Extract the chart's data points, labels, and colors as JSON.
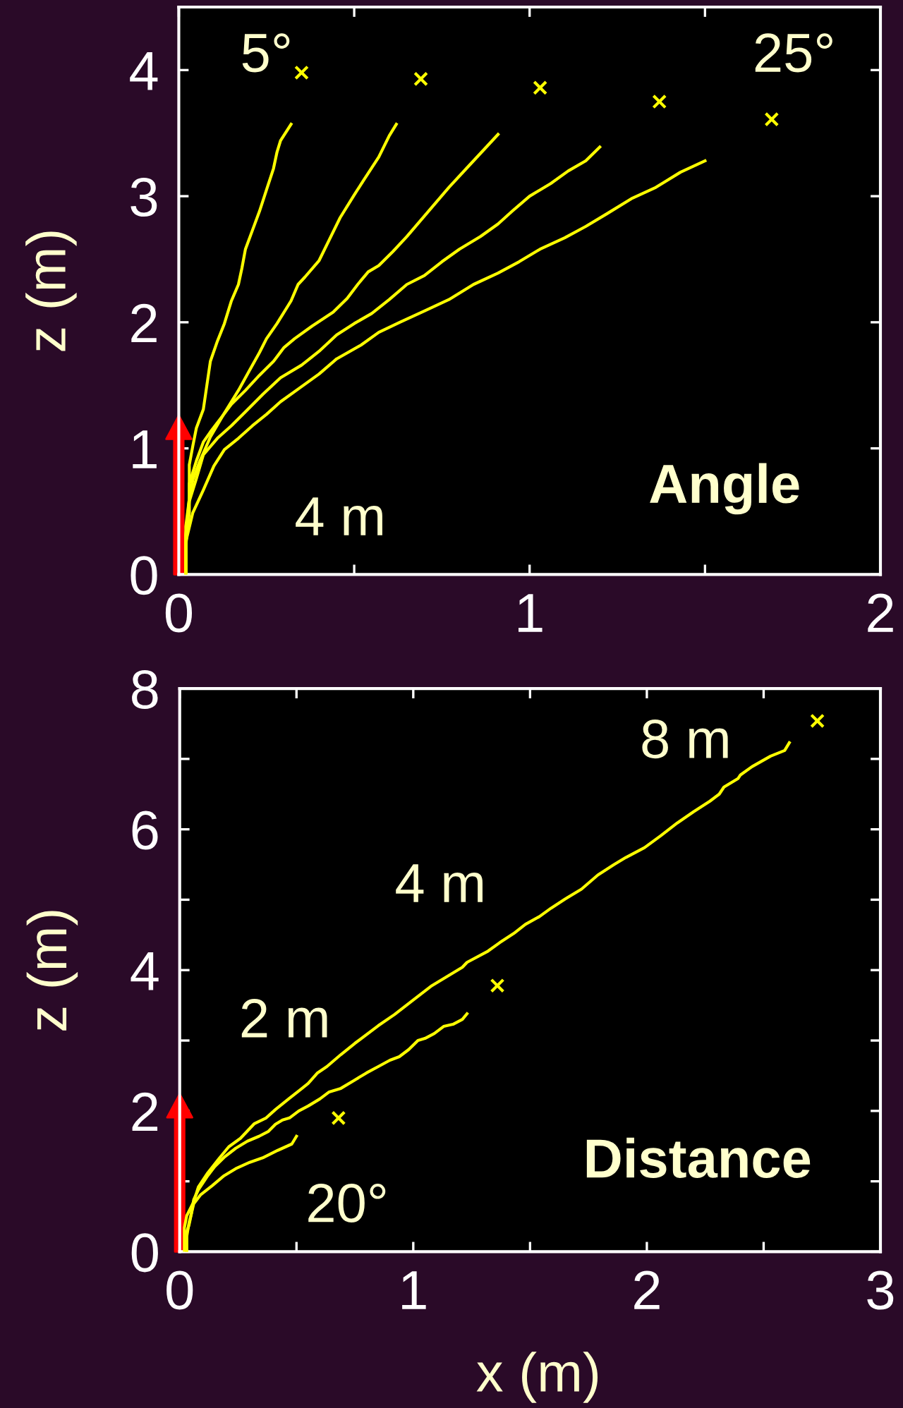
{
  "chart_data": [
    {
      "type": "line",
      "title": "Angle",
      "ylabel": "z (m)",
      "annotations": [
        "5°",
        "25°",
        "4 m"
      ],
      "xlim": [
        0,
        2
      ],
      "ylim": [
        0,
        4.5
      ],
      "xticks": [
        0,
        {
          "value": 0.5,
          "label": null
        },
        1,
        {
          "value": 1.5,
          "label": null
        },
        2
      ],
      "yticks": [
        0,
        1,
        2,
        3,
        4
      ],
      "series": [
        {
          "color": "#ffff00",
          "x": [
            0.02,
            0.02,
            0.03,
            0.03,
            0.04,
            0.05,
            0.07,
            0.08,
            0.09,
            0.11,
            0.13,
            0.15,
            0.17,
            0.18,
            0.19,
            0.21,
            0.23,
            0.25,
            0.27,
            0.28,
            0.29,
            0.32
          ],
          "values": [
            0.0,
            0.31,
            0.6,
            0.87,
            1.02,
            1.16,
            1.31,
            1.5,
            1.69,
            1.85,
            1.99,
            2.17,
            2.3,
            2.43,
            2.58,
            2.73,
            2.88,
            3.05,
            3.22,
            3.35,
            3.44,
            3.57
          ]
        },
        {
          "color": "#ffff00",
          "x": [
            0.02,
            0.02,
            0.03,
            0.04,
            0.06,
            0.09,
            0.13,
            0.17,
            0.2,
            0.23,
            0.25,
            0.28,
            0.32,
            0.34,
            0.36,
            0.4,
            0.43,
            0.46,
            0.5,
            0.53,
            0.57,
            0.6,
            0.62
          ],
          "values": [
            0.01,
            0.38,
            0.6,
            0.75,
            0.9,
            1.09,
            1.28,
            1.46,
            1.61,
            1.76,
            1.87,
            1.99,
            2.17,
            2.3,
            2.36,
            2.49,
            2.66,
            2.83,
            3.01,
            3.14,
            3.31,
            3.48,
            3.57
          ]
        },
        {
          "color": "#ffff00",
          "x": [
            0.02,
            0.02,
            0.03,
            0.03,
            0.05,
            0.07,
            0.09,
            0.12,
            0.15,
            0.19,
            0.23,
            0.27,
            0.3,
            0.33,
            0.38,
            0.44,
            0.48,
            0.51,
            0.54,
            0.57,
            0.61,
            0.65,
            0.69,
            0.73,
            0.77,
            0.82,
            0.87,
            0.91
          ],
          "values": [
            0.01,
            0.23,
            0.49,
            0.72,
            0.9,
            1.05,
            1.13,
            1.24,
            1.35,
            1.46,
            1.58,
            1.69,
            1.8,
            1.87,
            1.97,
            2.08,
            2.19,
            2.3,
            2.4,
            2.45,
            2.56,
            2.68,
            2.81,
            2.94,
            3.07,
            3.22,
            3.37,
            3.49
          ]
        },
        {
          "color": "#ffff00",
          "x": [
            0.02,
            0.02,
            0.03,
            0.05,
            0.07,
            0.11,
            0.15,
            0.19,
            0.24,
            0.29,
            0.35,
            0.4,
            0.45,
            0.5,
            0.55,
            0.6,
            0.65,
            0.7,
            0.75,
            0.8,
            0.86,
            0.91,
            0.95,
            1.0,
            1.06,
            1.11,
            1.16,
            1.2
          ],
          "values": [
            0.0,
            0.31,
            0.58,
            0.76,
            0.95,
            1.08,
            1.18,
            1.29,
            1.43,
            1.56,
            1.66,
            1.77,
            1.9,
            1.99,
            2.07,
            2.18,
            2.3,
            2.37,
            2.48,
            2.58,
            2.68,
            2.78,
            2.88,
            3.0,
            3.1,
            3.2,
            3.28,
            3.39
          ]
        },
        {
          "color": "#ffff00",
          "x": [
            0.02,
            0.02,
            0.04,
            0.07,
            0.1,
            0.13,
            0.17,
            0.21,
            0.25,
            0.29,
            0.34,
            0.4,
            0.45,
            0.52,
            0.57,
            0.63,
            0.7,
            0.77,
            0.84,
            0.91,
            0.97,
            1.03,
            1.1,
            1.16,
            1.22,
            1.29,
            1.36,
            1.43,
            1.5
          ],
          "values": [
            0.0,
            0.26,
            0.49,
            0.67,
            0.86,
            0.99,
            1.08,
            1.18,
            1.27,
            1.37,
            1.47,
            1.59,
            1.71,
            1.82,
            1.92,
            2.0,
            2.09,
            2.18,
            2.3,
            2.39,
            2.48,
            2.58,
            2.67,
            2.76,
            2.86,
            2.98,
            3.07,
            3.19,
            3.28
          ]
        },
        {
          "type": "scatter",
          "color": "#ffff00",
          "marker": "cross",
          "x": [
            0.35,
            0.69,
            1.03,
            1.37,
            1.69
          ],
          "values": [
            3.98,
            3.93,
            3.86,
            3.75,
            3.61
          ]
        }
      ]
    },
    {
      "type": "line",
      "title": "Distance",
      "xlabel": "x (m)",
      "ylabel": "z (m)",
      "annotations": [
        "8 m",
        "4 m",
        "2 m",
        "20°"
      ],
      "xlim": [
        0,
        3
      ],
      "ylim": [
        0,
        8
      ],
      "xticks": [
        0,
        {
          "value": 0.5,
          "label": null
        },
        1,
        {
          "value": 1.5,
          "label": null
        },
        2,
        {
          "value": 2.5,
          "label": null
        },
        3
      ],
      "yticks": [
        0,
        {
          "value": 1,
          "label": null
        },
        2,
        {
          "value": 3,
          "label": null
        },
        4,
        {
          "value": 5,
          "label": null
        },
        6,
        {
          "value": 7,
          "label": null
        },
        8
      ],
      "series": [
        {
          "color": "#ffff00",
          "x": [
            0.03,
            0.03,
            0.04,
            0.05,
            0.06,
            0.09,
            0.14,
            0.19,
            0.24,
            0.3,
            0.36,
            0.42,
            0.48,
            0.5
          ],
          "values": [
            0.0,
            0.28,
            0.38,
            0.54,
            0.68,
            0.81,
            0.94,
            1.08,
            1.18,
            1.27,
            1.34,
            1.44,
            1.53,
            1.64
          ]
        },
        {
          "color": "#ffff00",
          "x": [
            0.03,
            0.03,
            0.04,
            0.05,
            0.06,
            0.08,
            0.12,
            0.15,
            0.19,
            0.24,
            0.29,
            0.34,
            0.38,
            0.41,
            0.44,
            0.47,
            0.51,
            0.55,
            0.6,
            0.64,
            0.69,
            0.75,
            0.8,
            0.85,
            0.9,
            0.94,
            0.98,
            1.02,
            1.05,
            1.09,
            1.13,
            1.17,
            1.21,
            1.23
          ],
          "values": [
            0.0,
            0.21,
            0.41,
            0.54,
            0.74,
            0.88,
            1.08,
            1.21,
            1.34,
            1.47,
            1.57,
            1.64,
            1.71,
            1.81,
            1.87,
            1.9,
            2.0,
            2.07,
            2.17,
            2.27,
            2.32,
            2.44,
            2.54,
            2.63,
            2.72,
            2.77,
            2.87,
            3.0,
            3.03,
            3.1,
            3.2,
            3.23,
            3.3,
            3.38
          ]
        },
        {
          "color": "#ffff00",
          "x": [
            0.02,
            0.02,
            0.03,
            0.06,
            0.08,
            0.12,
            0.17,
            0.21,
            0.26,
            0.32,
            0.37,
            0.41,
            0.47,
            0.52,
            0.55,
            0.59,
            0.63,
            0.69,
            0.75,
            0.85,
            0.92,
            0.99,
            1.08,
            1.14,
            1.21,
            1.23,
            1.32,
            1.37,
            1.43,
            1.48,
            1.54,
            1.59,
            1.65,
            1.72,
            1.79,
            1.86,
            1.91,
            1.99,
            2.06,
            2.13,
            2.2,
            2.27,
            2.31,
            2.33,
            2.39,
            2.4,
            2.45,
            2.53,
            2.59,
            2.61
          ],
          "values": [
            0.0,
            0.34,
            0.51,
            0.71,
            0.92,
            1.12,
            1.33,
            1.49,
            1.61,
            1.82,
            1.9,
            2.02,
            2.18,
            2.31,
            2.39,
            2.54,
            2.63,
            2.8,
            2.96,
            3.21,
            3.37,
            3.55,
            3.78,
            3.9,
            4.04,
            4.11,
            4.27,
            4.39,
            4.52,
            4.65,
            4.76,
            4.88,
            5.01,
            5.15,
            5.35,
            5.5,
            5.6,
            5.74,
            5.91,
            6.09,
            6.25,
            6.4,
            6.5,
            6.6,
            6.72,
            6.77,
            6.89,
            7.04,
            7.12,
            7.23
          ]
        },
        {
          "type": "scatter",
          "color": "#ffff00",
          "marker": "cross",
          "x": [
            0.68,
            1.36,
            2.73
          ],
          "values": [
            1.9,
            3.78,
            7.54
          ]
        }
      ]
    }
  ]
}
